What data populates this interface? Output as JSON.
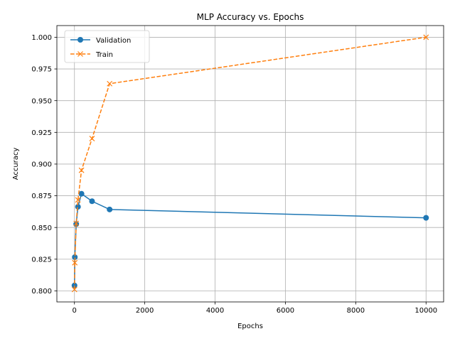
{
  "chart_data": {
    "type": "line",
    "title": "MLP Accuracy vs. Epochs",
    "xlabel": "Epochs",
    "ylabel": "Accuracy",
    "xlim": [
      -500,
      10500
    ],
    "ylim": [
      0.7913,
      1.0092
    ],
    "xticks": [
      0,
      2000,
      4000,
      6000,
      8000,
      10000
    ],
    "xtick_labels": [
      "0",
      "2000",
      "4000",
      "6000",
      "8000",
      "10000"
    ],
    "yticks": [
      0.8,
      0.825,
      0.85,
      0.875,
      0.9,
      0.925,
      0.95,
      0.975,
      1.0
    ],
    "ytick_labels": [
      "0.800",
      "0.825",
      "0.850",
      "0.875",
      "0.900",
      "0.925",
      "0.950",
      "0.975",
      "1.000"
    ],
    "grid": true,
    "legend_position": "top-left",
    "series": [
      {
        "name": "Validation",
        "color": "#1f77b4",
        "marker": "circle",
        "line_style": "solid",
        "x": [
          1,
          10,
          50,
          100,
          200,
          500,
          1000,
          10000
        ],
        "y": [
          0.8043,
          0.8266,
          0.8527,
          0.8663,
          0.8766,
          0.8707,
          0.8642,
          0.8576
        ]
      },
      {
        "name": "Train",
        "color": "#ff7f0e",
        "marker": "x",
        "line_style": "dashed",
        "x": [
          1,
          10,
          50,
          100,
          200,
          500,
          1000,
          10000
        ],
        "y": [
          0.8011,
          0.8222,
          0.8532,
          0.8717,
          0.8951,
          0.9201,
          0.9634,
          1.0
        ]
      }
    ]
  }
}
